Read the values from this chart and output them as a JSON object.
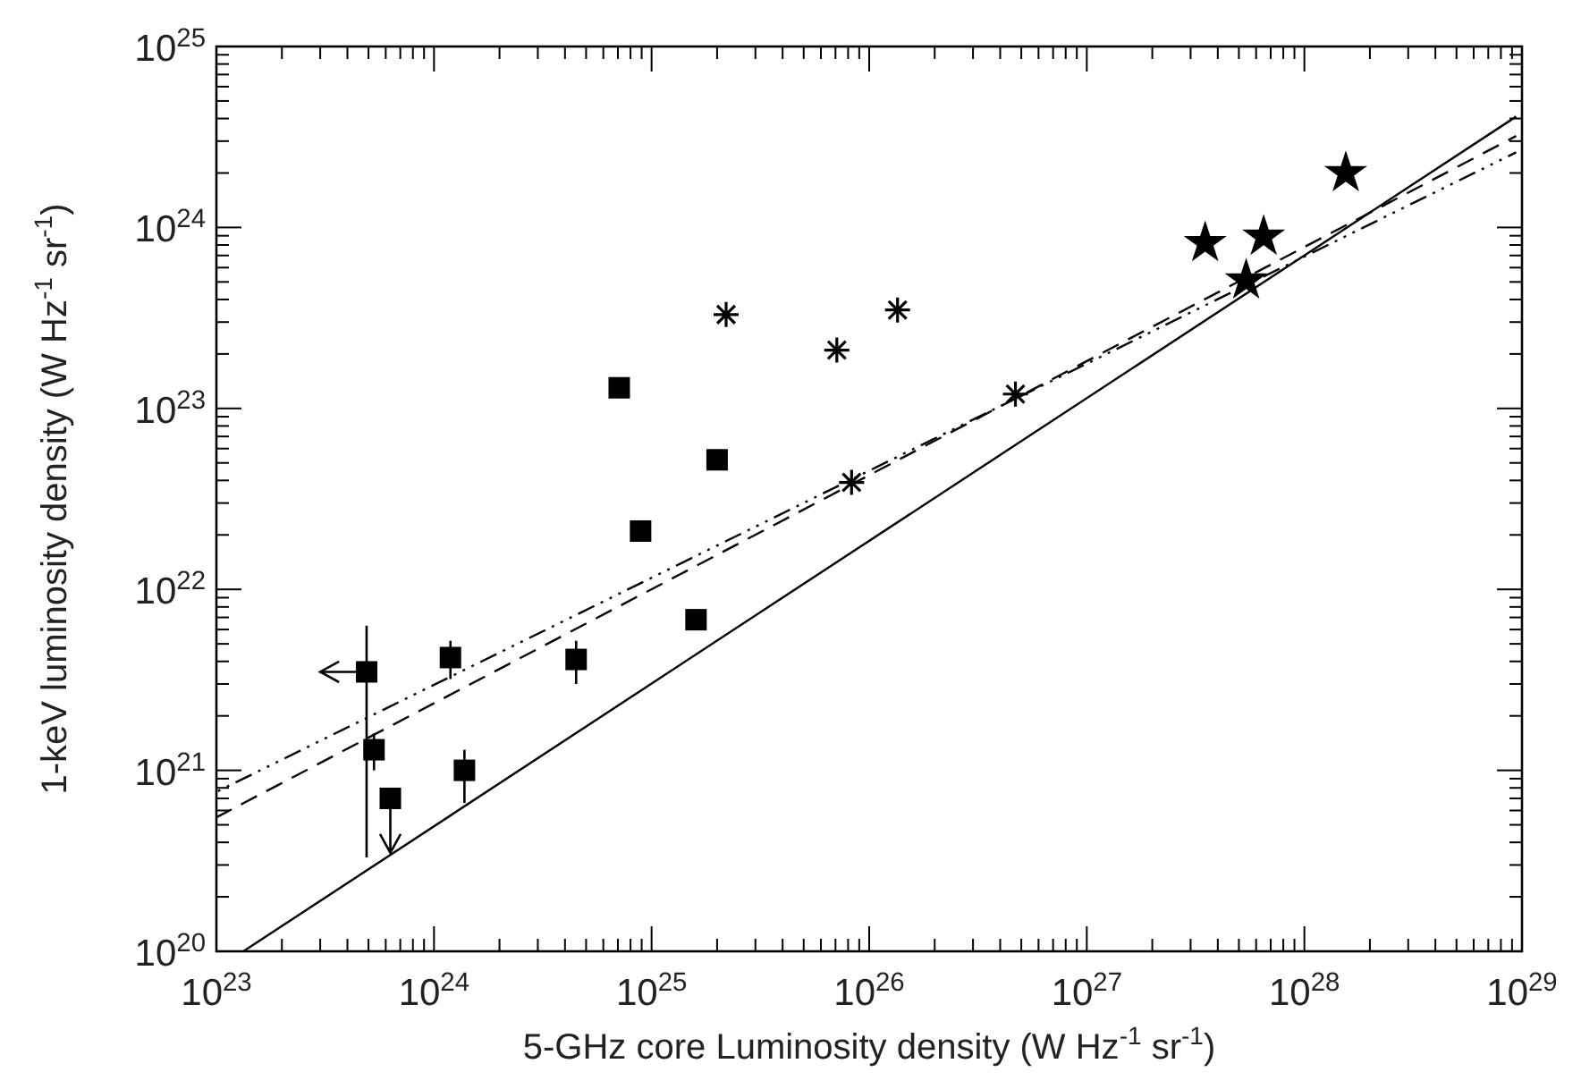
{
  "chart_data": {
    "type": "scatter",
    "xlabel": "5-GHz core Luminosity density (W Hz$^{-1}$ sr$^{-1}$)",
    "ylabel": "1-keV luminosity density (W Hz$^{-1}$ sr$^{-1}$)",
    "log": "xy",
    "grid": false,
    "xlim": [
      1e+23,
      1e+29
    ],
    "ylim": [
      1e+20,
      1e+25
    ],
    "xticks": [
      {
        "value": 1e+23,
        "label": "10$^{23}$"
      },
      {
        "value": 2e+23,
        "label": null
      },
      {
        "value": 3e+23,
        "label": null
      },
      {
        "value": 4e+23,
        "label": null
      },
      {
        "value": 5e+23,
        "label": null
      },
      {
        "value": 6e+23,
        "label": null
      },
      {
        "value": 7e+23,
        "label": null
      },
      {
        "value": 8e+23,
        "label": null
      },
      {
        "value": 9e+23,
        "label": null
      },
      {
        "value": 1e+24,
        "label": "10$^{24}$"
      },
      {
        "value": 2e+24,
        "label": null
      },
      {
        "value": 3e+24,
        "label": null
      },
      {
        "value": 4e+24,
        "label": null
      },
      {
        "value": 5e+24,
        "label": null
      },
      {
        "value": 6e+24,
        "label": null
      },
      {
        "value": 7e+24,
        "label": null
      },
      {
        "value": 8e+24,
        "label": null
      },
      {
        "value": 9e+24,
        "label": null
      },
      {
        "value": 1e+25,
        "label": "10$^{25}$"
      },
      {
        "value": 2e+25,
        "label": null
      },
      {
        "value": 3e+25,
        "label": null
      },
      {
        "value": 4e+25,
        "label": null
      },
      {
        "value": 5e+25,
        "label": null
      },
      {
        "value": 6e+25,
        "label": null
      },
      {
        "value": 7e+25,
        "label": null
      },
      {
        "value": 8e+25,
        "label": null
      },
      {
        "value": 9e+25,
        "label": null
      },
      {
        "value": 1e+26,
        "label": "10$^{26}$"
      },
      {
        "value": 2e+26,
        "label": null
      },
      {
        "value": 3e+26,
        "label": null
      },
      {
        "value": 4e+26,
        "label": null
      },
      {
        "value": 5e+26,
        "label": null
      },
      {
        "value": 6e+26,
        "label": null
      },
      {
        "value": 7e+26,
        "label": null
      },
      {
        "value": 8e+26,
        "label": null
      },
      {
        "value": 9e+26,
        "label": null
      },
      {
        "value": 1e+27,
        "label": "10$^{27}$"
      },
      {
        "value": 2e+27,
        "label": null
      },
      {
        "value": 3e+27,
        "label": null
      },
      {
        "value": 4e+27,
        "label": null
      },
      {
        "value": 5e+27,
        "label": null
      },
      {
        "value": 6e+27,
        "label": null
      },
      {
        "value": 7e+27,
        "label": null
      },
      {
        "value": 8e+27,
        "label": null
      },
      {
        "value": 9e+27,
        "label": null
      },
      {
        "value": 1e+28,
        "label": "10$^{28}$"
      },
      {
        "value": 2e+28,
        "label": null
      },
      {
        "value": 3e+28,
        "label": null
      },
      {
        "value": 4e+28,
        "label": null
      },
      {
        "value": 5e+28,
        "label": null
      },
      {
        "value": 6e+28,
        "label": null
      },
      {
        "value": 7e+28,
        "label": null
      },
      {
        "value": 8e+28,
        "label": null
      },
      {
        "value": 9e+28,
        "label": null
      },
      {
        "value": 1e+29,
        "label": "10$^{29}$"
      }
    ],
    "yticks": [
      {
        "value": 1e+20,
        "label": "10$^{20}$"
      },
      {
        "value": 2e+20,
        "label": null
      },
      {
        "value": 3e+20,
        "label": null
      },
      {
        "value": 4e+20,
        "label": null
      },
      {
        "value": 5e+20,
        "label": null
      },
      {
        "value": 6e+20,
        "label": null
      },
      {
        "value": 7e+20,
        "label": null
      },
      {
        "value": 8e+20,
        "label": null
      },
      {
        "value": 9e+20,
        "label": null
      },
      {
        "value": 1e+21,
        "label": "10$^{21}$"
      },
      {
        "value": 2e+21,
        "label": null
      },
      {
        "value": 3e+21,
        "label": null
      },
      {
        "value": 4e+21,
        "label": null
      },
      {
        "value": 5e+21,
        "label": null
      },
      {
        "value": 6e+21,
        "label": null
      },
      {
        "value": 7e+21,
        "label": null
      },
      {
        "value": 8e+21,
        "label": null
      },
      {
        "value": 9e+21,
        "label": null
      },
      {
        "value": 1e+22,
        "label": "10$^{22}$"
      },
      {
        "value": 2e+22,
        "label": null
      },
      {
        "value": 3e+22,
        "label": null
      },
      {
        "value": 4e+22,
        "label": null
      },
      {
        "value": 5e+22,
        "label": null
      },
      {
        "value": 6e+22,
        "label": null
      },
      {
        "value": 7e+22,
        "label": null
      },
      {
        "value": 8e+22,
        "label": null
      },
      {
        "value": 9e+22,
        "label": null
      },
      {
        "value": 1e+23,
        "label": "10$^{23}$"
      },
      {
        "value": 2e+23,
        "label": null
      },
      {
        "value": 3e+23,
        "label": null
      },
      {
        "value": 4e+23,
        "label": null
      },
      {
        "value": 5e+23,
        "label": null
      },
      {
        "value": 6e+23,
        "label": null
      },
      {
        "value": 7e+23,
        "label": null
      },
      {
        "value": 8e+23,
        "label": null
      },
      {
        "value": 9e+23,
        "label": null
      },
      {
        "value": 1e+24,
        "label": "10$^{24}$"
      },
      {
        "value": 2e+24,
        "label": null
      },
      {
        "value": 3e+24,
        "label": null
      },
      {
        "value": 4e+24,
        "label": null
      },
      {
        "value": 5e+24,
        "label": null
      },
      {
        "value": 6e+24,
        "label": null
      },
      {
        "value": 7e+24,
        "label": null
      },
      {
        "value": 8e+24,
        "label": null
      },
      {
        "value": 9e+24,
        "label": null
      },
      {
        "value": 1e+25,
        "label": "10$^{25}$"
      }
    ],
    "series": [
      {
        "marker": "square",
        "color": "#000000",
        "x": [
          4.9e+23,
          5.3e+23,
          6.3e+23,
          1.19e+24,
          1.38e+24,
          4.5e+24,
          7.1e+24,
          8.9e+24,
          2e+25,
          1.6e+25
        ],
        "values": [
          3.5e+21,
          1.3e+21,
          7e+20,
          4.2e+21,
          1e+21,
          4.1e+21,
          1.3e+23,
          2.1e+22,
          5.2e+22,
          6.8e+21
        ],
        "errors": [
          [
            3.3e+20,
            6.3e+21
          ],
          [
            1e+21,
            1.6e+21
          ],
          [
            3.5e+20,
            7e+20
          ],
          [
            3.2e+21,
            5.2e+21
          ],
          [
            6.6e+20,
            1.3e+21
          ],
          [
            3e+21,
            5.2e+21
          ],
          null,
          null,
          null,
          null
        ],
        "xerrors": [
          [
            3e+23,
            4.9e+23
          ],
          null,
          null,
          null,
          null,
          null,
          null,
          null,
          null,
          null
        ]
      },
      {
        "marker": "cross",
        "color": "#000000",
        "x": [
          2.2e+25,
          7.1e+25,
          1.35e+26,
          8.3e+25,
          4.7e+26
        ],
        "values": [
          3.3e+23,
          2.1e+23,
          3.5e+23,
          3.9e+22,
          1.2e+23
        ]
      },
      {
        "marker": "star",
        "color": "#000000",
        "x": [
          3.5e+27,
          5.4e+27,
          6.5e+27,
          1.55e+28
        ],
        "values": [
          8.2e+23,
          5.1e+23,
          8.9e+23,
          2e+24
        ]
      },
      {
        "type": "line",
        "marker": "none",
        "line_style": "solid",
        "color": "#000000",
        "x": [
          1.33e+23,
          9.4e+28
        ],
        "values": [
          1e+20,
          4.1e+24
        ]
      },
      {
        "type": "line",
        "marker": "none",
        "line_style": "dashed",
        "color": "#000000",
        "x": [
          1e+23,
          9.4e+28
        ],
        "values": [
          5.5e+20,
          3.2e+24
        ]
      },
      {
        "type": "line",
        "marker": "none",
        "line_style": "dotted",
        "color": "#000000",
        "x": [
          1e+23,
          9.4e+28
        ],
        "values": [
          7.6e+20,
          2.6e+24
        ]
      }
    ]
  }
}
